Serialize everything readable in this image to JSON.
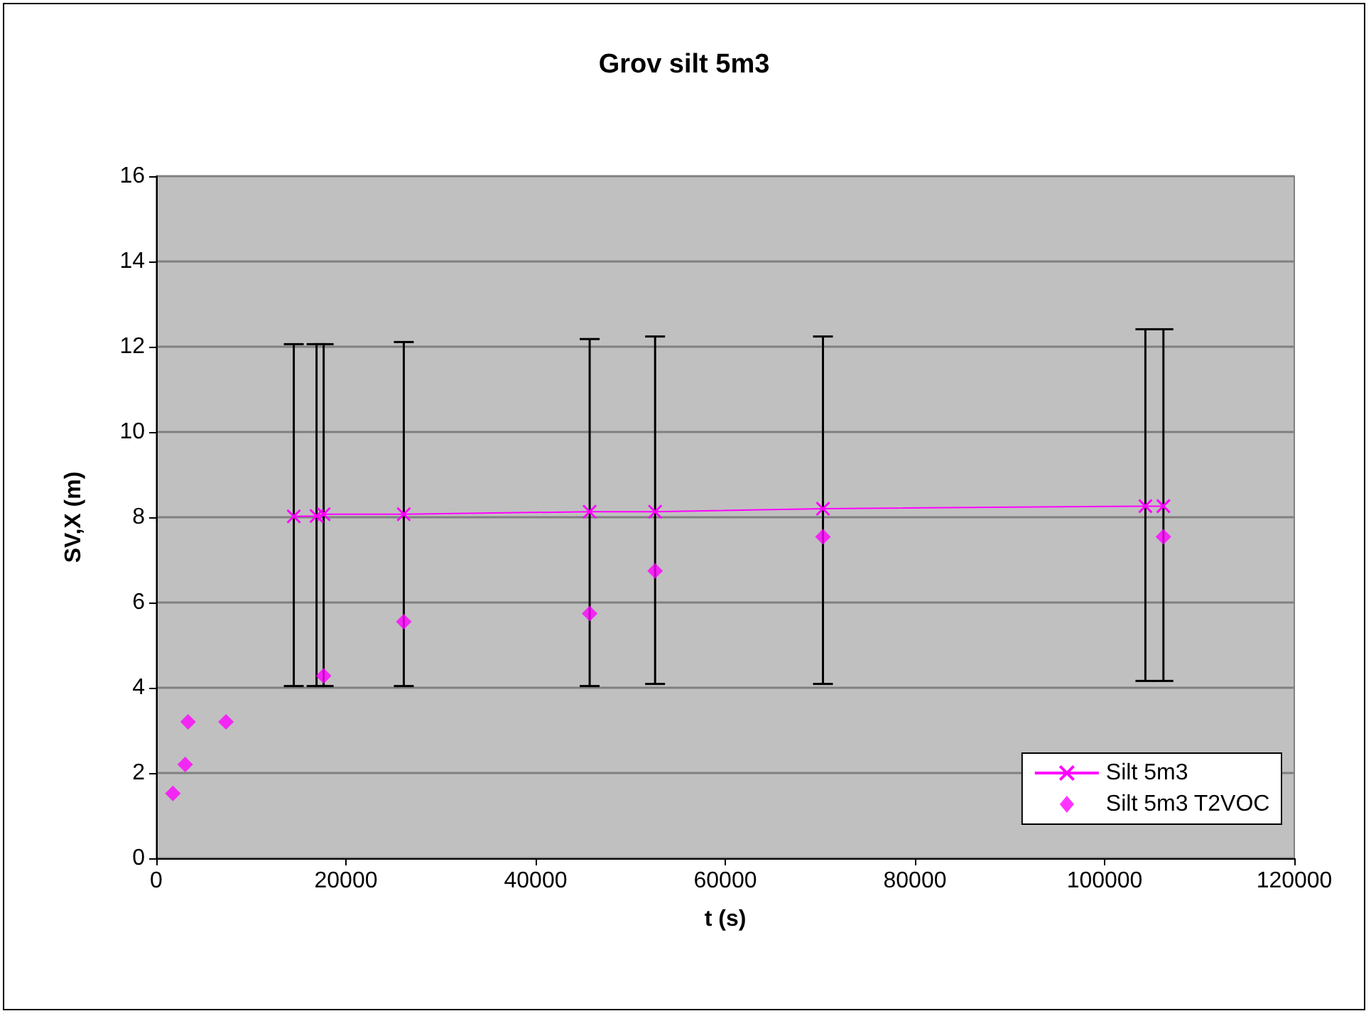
{
  "chart_data": {
    "type": "line",
    "title": "Grov silt 5m3",
    "xlabel": "t (s)",
    "ylabel": "SV,X (m)",
    "xlim": [
      0,
      120000
    ],
    "xticks": [
      0,
      20000,
      40000,
      60000,
      80000,
      100000,
      120000
    ],
    "ylim": [
      0,
      16
    ],
    "yticks": [
      0,
      2,
      4,
      6,
      8,
      10,
      12,
      14,
      16
    ],
    "grid": "y",
    "legend": "bottom right",
    "series": [
      {
        "name": "Silt 5m3",
        "color": "#ff00ff",
        "marker": "cross",
        "x": [
          14500,
          16900,
          17650,
          26100,
          45700,
          52600,
          70300,
          104300,
          106200
        ],
        "values": [
          8.02,
          8.03,
          8.07,
          8.07,
          8.13,
          8.13,
          8.2,
          8.26,
          8.26
        ],
        "errors": [
          [
            4.04,
            12.06
          ],
          [
            4.04,
            12.06
          ],
          [
            4.04,
            12.06
          ],
          [
            4.04,
            12.11
          ],
          [
            4.04,
            12.18
          ],
          [
            4.09,
            12.24
          ],
          [
            4.09,
            12.24
          ],
          [
            4.16,
            12.41
          ],
          [
            4.16,
            12.41
          ]
        ]
      },
      {
        "name": "Silt 5m3 T2VOC",
        "type": "scatter",
        "color": "#ff00ff",
        "marker": "diamond",
        "x": [
          1750,
          3050,
          3350,
          7350,
          17650,
          26100,
          45700,
          52600,
          70300,
          106200
        ],
        "values": [
          1.52,
          2.2,
          3.2,
          3.2,
          4.28,
          5.55,
          5.74,
          6.74,
          7.54,
          7.54
        ]
      }
    ]
  }
}
